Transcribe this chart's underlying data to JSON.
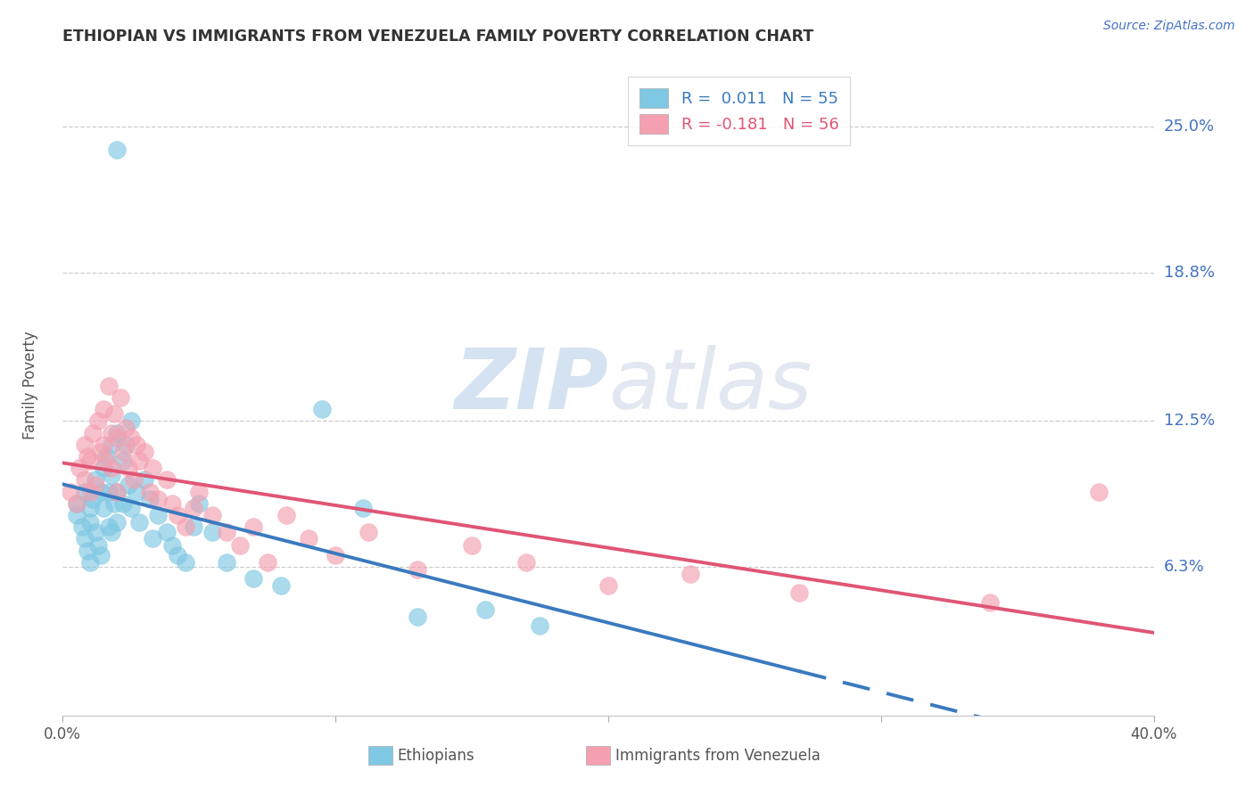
{
  "title": "ETHIOPIAN VS IMMIGRANTS FROM VENEZUELA FAMILY POVERTY CORRELATION CHART",
  "source": "Source: ZipAtlas.com",
  "ylabel": "Family Poverty",
  "yticks": [
    0.063,
    0.125,
    0.188,
    0.25
  ],
  "ytick_labels": [
    "6.3%",
    "12.5%",
    "18.8%",
    "25.0%"
  ],
  "xmin": 0.0,
  "xmax": 0.4,
  "ymin": 0.0,
  "ymax": 0.28,
  "blue_color": "#7ec8e3",
  "pink_color": "#f4a0b0",
  "blue_line_color": "#3a7abf",
  "pink_line_color": "#e05575",
  "watermark_text": "ZIP",
  "watermark_text2": "atlas",
  "ethiopians_x": [
    0.005,
    0.005,
    0.007,
    0.008,
    0.008,
    0.009,
    0.01,
    0.01,
    0.01,
    0.011,
    0.012,
    0.012,
    0.013,
    0.014,
    0.014,
    0.015,
    0.015,
    0.016,
    0.017,
    0.017,
    0.018,
    0.018,
    0.018,
    0.019,
    0.02,
    0.02,
    0.02,
    0.022,
    0.022,
    0.023,
    0.024,
    0.025,
    0.025,
    0.027,
    0.028,
    0.03,
    0.032,
    0.033,
    0.035,
    0.038,
    0.04,
    0.042,
    0.045,
    0.048,
    0.05,
    0.055,
    0.06,
    0.07,
    0.08,
    0.095,
    0.11,
    0.13,
    0.155,
    0.175,
    0.02
  ],
  "ethiopians_y": [
    0.09,
    0.085,
    0.08,
    0.075,
    0.095,
    0.07,
    0.088,
    0.082,
    0.065,
    0.092,
    0.1,
    0.078,
    0.072,
    0.095,
    0.068,
    0.105,
    0.088,
    0.11,
    0.095,
    0.08,
    0.115,
    0.102,
    0.078,
    0.09,
    0.12,
    0.095,
    0.082,
    0.108,
    0.09,
    0.115,
    0.098,
    0.125,
    0.088,
    0.095,
    0.082,
    0.1,
    0.092,
    0.075,
    0.085,
    0.078,
    0.072,
    0.068,
    0.065,
    0.08,
    0.09,
    0.078,
    0.065,
    0.058,
    0.055,
    0.13,
    0.088,
    0.042,
    0.045,
    0.038,
    0.24
  ],
  "venezuela_x": [
    0.003,
    0.005,
    0.006,
    0.008,
    0.008,
    0.009,
    0.01,
    0.01,
    0.011,
    0.012,
    0.013,
    0.014,
    0.015,
    0.015,
    0.016,
    0.017,
    0.018,
    0.018,
    0.019,
    0.02,
    0.02,
    0.021,
    0.022,
    0.023,
    0.024,
    0.025,
    0.026,
    0.027,
    0.028,
    0.03,
    0.032,
    0.033,
    0.035,
    0.038,
    0.04,
    0.042,
    0.045,
    0.048,
    0.05,
    0.055,
    0.06,
    0.065,
    0.07,
    0.075,
    0.082,
    0.09,
    0.1,
    0.112,
    0.13,
    0.15,
    0.17,
    0.2,
    0.23,
    0.27,
    0.34,
    0.38
  ],
  "venezuela_y": [
    0.095,
    0.09,
    0.105,
    0.115,
    0.1,
    0.11,
    0.108,
    0.095,
    0.12,
    0.098,
    0.125,
    0.112,
    0.13,
    0.115,
    0.108,
    0.14,
    0.12,
    0.105,
    0.128,
    0.118,
    0.095,
    0.135,
    0.112,
    0.122,
    0.105,
    0.118,
    0.1,
    0.115,
    0.108,
    0.112,
    0.095,
    0.105,
    0.092,
    0.1,
    0.09,
    0.085,
    0.08,
    0.088,
    0.095,
    0.085,
    0.078,
    0.072,
    0.08,
    0.065,
    0.085,
    0.075,
    0.068,
    0.078,
    0.062,
    0.072,
    0.065,
    0.055,
    0.06,
    0.052,
    0.048,
    0.095
  ]
}
